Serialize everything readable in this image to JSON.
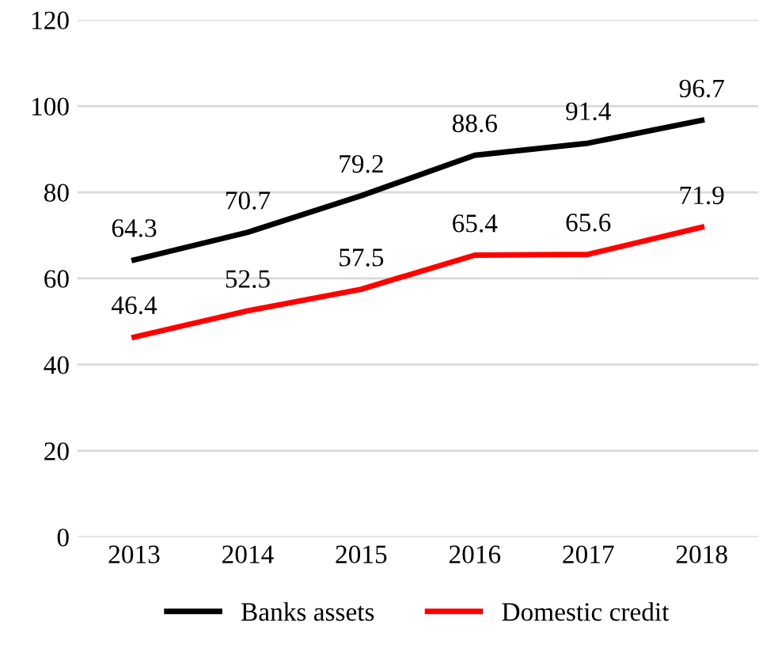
{
  "chart_data": {
    "type": "line",
    "categories": [
      "2013",
      "2014",
      "2015",
      "2016",
      "2017",
      "2018"
    ],
    "series": [
      {
        "name": "Banks assets",
        "color": "#000000",
        "values": [
          64.3,
          70.7,
          79.2,
          88.6,
          91.4,
          96.7
        ]
      },
      {
        "name": "Domestic credit",
        "color": "#ff0000",
        "values": [
          46.4,
          52.5,
          57.5,
          65.4,
          65.6,
          71.9
        ]
      }
    ],
    "ylim": [
      0,
      120
    ],
    "yticks": [
      0,
      20,
      40,
      60,
      80,
      100,
      120
    ],
    "grid": "y",
    "legend": "bottom",
    "data_labels": true,
    "marker": "none",
    "line_style": "solid"
  }
}
